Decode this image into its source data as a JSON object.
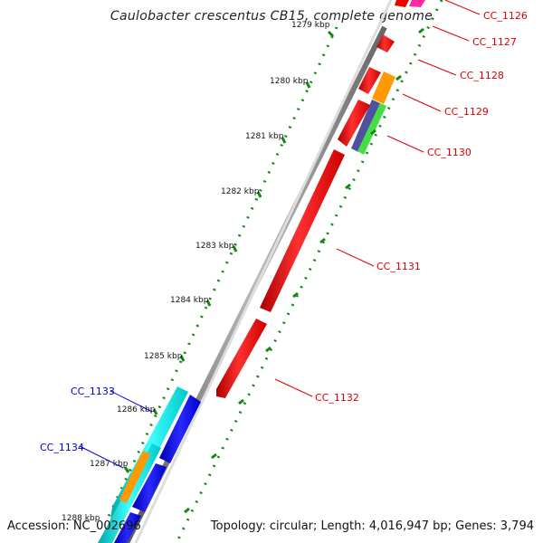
{
  "title": "Caulobacter crescentus CB15, complete genome",
  "footer": {
    "accession": "Accession: NC_002696",
    "summary": "Topology: circular; Length: 4,016,947 bp; Genes: 3,794"
  },
  "colors": {
    "forward_label": "#dd0000",
    "reverse_label": "#0000cc",
    "backbone": "#888888",
    "gc_dots": "#118811"
  },
  "ticks": [
    "1279 kbp",
    "1280 kbp",
    "1281 kbp",
    "1282 kbp",
    "1283 kbp",
    "1284 kbp",
    "1285 kbp",
    "1286 kbp",
    "1287 kbp",
    "1288 kbp"
  ],
  "genes_right": [
    "CC_1126",
    "CC_1127",
    "CC_1128",
    "CC_1129",
    "CC_1130",
    "CC_1131",
    "CC_1132"
  ],
  "genes_left": [
    "CC_1133",
    "CC_1134"
  ]
}
